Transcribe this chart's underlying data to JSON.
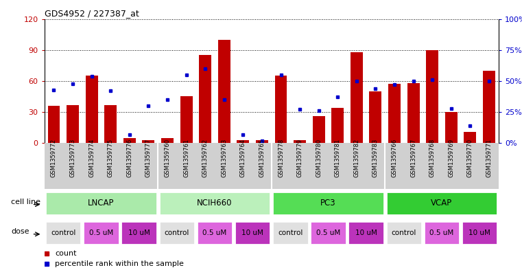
{
  "title": "GDS4952 / 227387_at",
  "samples": [
    "GSM1359772",
    "GSM1359773",
    "GSM1359774",
    "GSM1359775",
    "GSM1359776",
    "GSM1359777",
    "GSM1359760",
    "GSM1359761",
    "GSM1359762",
    "GSM1359763",
    "GSM1359764",
    "GSM1359765",
    "GSM1359778",
    "GSM1359779",
    "GSM1359780",
    "GSM1359781",
    "GSM1359782",
    "GSM1359783",
    "GSM1359766",
    "GSM1359767",
    "GSM1359768",
    "GSM1359769",
    "GSM1359770",
    "GSM1359771"
  ],
  "counts": [
    36,
    37,
    65,
    37,
    5,
    3,
    5,
    45,
    85,
    100,
    3,
    3,
    65,
    3,
    26,
    34,
    88,
    50,
    57,
    58,
    90,
    30,
    11,
    70
  ],
  "percentiles": [
    43,
    48,
    54,
    42,
    7,
    30,
    35,
    55,
    60,
    35,
    7,
    2,
    55,
    27,
    26,
    37,
    50,
    44,
    47,
    50,
    51,
    28,
    14,
    50
  ],
  "ylim_left": [
    0,
    120
  ],
  "ylim_right": [
    0,
    100
  ],
  "bar_color": "#c00000",
  "dot_color": "#0000cc",
  "xtick_bg": "#d0d0d0",
  "cell_line_data": [
    {
      "name": "LNCAP",
      "start": 0,
      "end": 6,
      "color": "#aaeaaa"
    },
    {
      "name": "NCIH660",
      "start": 6,
      "end": 12,
      "color": "#bbf0bb"
    },
    {
      "name": "PC3",
      "start": 12,
      "end": 18,
      "color": "#55dd55"
    },
    {
      "name": "VCAP",
      "start": 18,
      "end": 24,
      "color": "#33cc33"
    }
  ],
  "dose_groups": [
    0,
    6,
    12,
    18
  ],
  "dose_labels": [
    "control",
    "0.5 uM",
    "10 uM"
  ],
  "dose_colors": [
    "#e0e0e0",
    "#dd66dd",
    "#bb33bb"
  ],
  "grid_yticks": [
    0,
    30,
    60,
    90,
    120
  ],
  "right_yticks": [
    0,
    25,
    50,
    75,
    100
  ],
  "right_yticklabels": [
    "0%",
    "25%",
    "50%",
    "75%",
    "100%"
  ]
}
